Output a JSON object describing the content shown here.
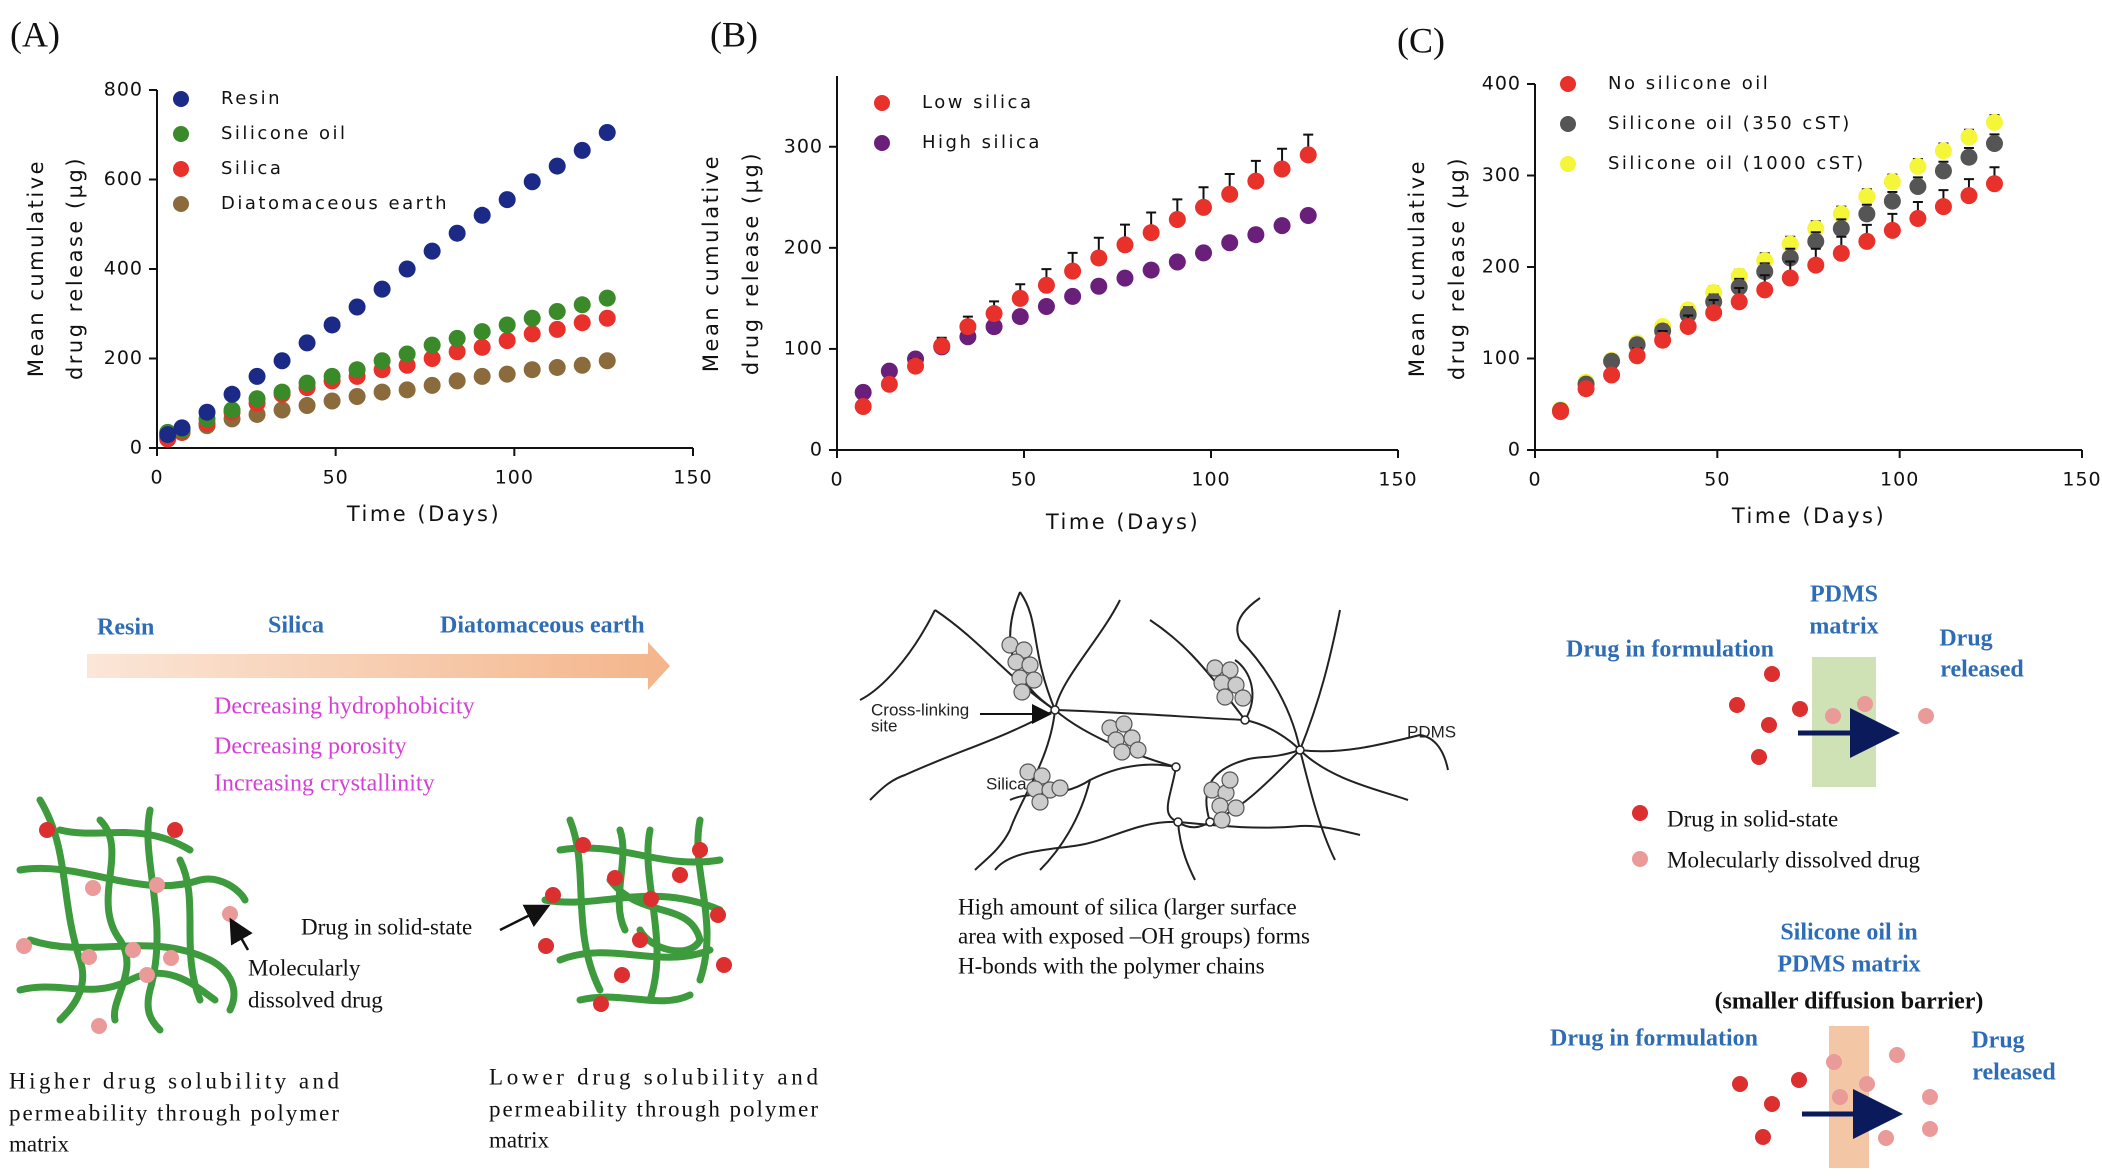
{
  "chart_data": [
    {
      "type": "scatter",
      "panel": "(A)",
      "xlabel": "Time (Days)",
      "ylabel": [
        "Mean cumulative",
        "drug release (µg)"
      ],
      "xlim": [
        0,
        150
      ],
      "xticks": [
        0,
        50,
        100,
        150
      ],
      "ylim": [
        0,
        800
      ],
      "yticks": [
        0,
        200,
        400,
        600,
        800
      ],
      "legend": "upper left",
      "x": [
        3,
        7,
        14,
        21,
        28,
        35,
        42,
        49,
        56,
        63,
        70,
        77,
        84,
        91,
        98,
        105,
        112,
        119,
        126
      ],
      "series": [
        {
          "name": "Resin",
          "color": "#1b2a86",
          "values": [
            30,
            45,
            80,
            120,
            160,
            195,
            235,
            275,
            315,
            355,
            400,
            440,
            480,
            520,
            555,
            595,
            630,
            665,
            705
          ]
        },
        {
          "name": "Silicone oil",
          "color": "#3a8a2a",
          "values": [
            35,
            40,
            65,
            85,
            110,
            125,
            145,
            160,
            175,
            195,
            210,
            230,
            245,
            260,
            275,
            290,
            305,
            320,
            335
          ]
        },
        {
          "name": "Silica",
          "color": "#e8312a",
          "values": [
            20,
            35,
            55,
            80,
            100,
            120,
            135,
            150,
            160,
            175,
            185,
            200,
            215,
            225,
            240,
            255,
            265,
            280,
            290
          ]
        },
        {
          "name": "Diatomaceous earth",
          "color": "#8b6a3c",
          "values": [
            25,
            35,
            50,
            65,
            75,
            85,
            95,
            105,
            115,
            125,
            130,
            140,
            150,
            160,
            165,
            175,
            180,
            185,
            195
          ]
        }
      ]
    },
    {
      "type": "scatter",
      "panel": "(B)",
      "xlabel": "Time (Days)",
      "ylabel": [
        "Mean cumulative",
        "drug release (µg)"
      ],
      "xlim": [
        0,
        150
      ],
      "xticks": [
        0,
        50,
        100,
        150
      ],
      "ylim": [
        0,
        370
      ],
      "yticks": [
        0,
        100,
        200,
        300
      ],
      "legend": "upper left",
      "x": [
        7,
        14,
        21,
        28,
        35,
        42,
        49,
        56,
        63,
        70,
        77,
        84,
        91,
        98,
        105,
        112,
        119,
        126
      ],
      "series": [
        {
          "name": "Low silica",
          "color": "#e8312a",
          "values": [
            43,
            65,
            83,
            103,
            122,
            135,
            150,
            163,
            177,
            190,
            203,
            215,
            228,
            240,
            253,
            266,
            278,
            292
          ],
          "errors": [
            5,
            6,
            7,
            8,
            10,
            12,
            14,
            16,
            18,
            20,
            20,
            20,
            20,
            20,
            20,
            20,
            20,
            20
          ]
        },
        {
          "name": "High silica",
          "color": "#6a1f7a",
          "values": [
            57,
            78,
            90,
            102,
            112,
            122,
            132,
            142,
            152,
            162,
            170,
            178,
            186,
            195,
            205,
            213,
            222,
            232
          ]
        }
      ]
    },
    {
      "type": "scatter",
      "panel": "(C)",
      "xlabel": "Time (Days)",
      "ylabel": [
        "Mean cumulative",
        "drug release (µg)"
      ],
      "xlim": [
        0,
        150
      ],
      "xticks": [
        0,
        50,
        100,
        150
      ],
      "ylim": [
        0,
        400
      ],
      "yticks": [
        0,
        100,
        200,
        300,
        400
      ],
      "legend": "upper left",
      "x": [
        7,
        14,
        21,
        28,
        35,
        42,
        49,
        56,
        63,
        70,
        77,
        84,
        91,
        98,
        105,
        112,
        119,
        126
      ],
      "series": [
        {
          "name": "No silicone oil",
          "color": "#e8312a",
          "values": [
            42,
            67,
            82,
            103,
            120,
            135,
            150,
            162,
            175,
            188,
            202,
            215,
            228,
            240,
            253,
            266,
            278,
            291
          ],
          "errors": [
            4,
            6,
            7,
            8,
            10,
            12,
            14,
            15,
            16,
            18,
            18,
            18,
            18,
            18,
            18,
            18,
            18,
            18
          ]
        },
        {
          "name": "Silicone oil (350 cST)",
          "color": "#555555",
          "values": [
            43,
            72,
            97,
            115,
            130,
            148,
            162,
            178,
            195,
            210,
            228,
            242,
            258,
            272,
            288,
            305,
            320,
            335
          ],
          "errors": [
            3,
            4,
            5,
            6,
            7,
            8,
            8,
            9,
            9,
            10,
            10,
            10,
            10,
            10,
            10,
            10,
            10,
            10
          ]
        },
        {
          "name": "Silicone oil (1000 cST)",
          "color": "#f5f53a",
          "values": [
            44,
            74,
            98,
            117,
            135,
            153,
            172,
            190,
            207,
            225,
            242,
            258,
            277,
            293,
            310,
            327,
            342,
            358
          ],
          "errors": [
            3,
            4,
            5,
            5,
            6,
            6,
            7,
            7,
            8,
            8,
            8,
            8,
            8,
            8,
            8,
            8,
            8,
            8
          ]
        }
      ]
    }
  ],
  "left_diagram": {
    "arrow_labels": [
      "Resin",
      "Silica",
      "Diatomaceous earth"
    ],
    "trends": [
      "Decreasing hydrophobicity",
      "Decreasing porosity",
      "Increasing crystallinity"
    ],
    "solid_label": "Drug in solid-state",
    "dissolved_label": [
      "Molecularly",
      "dissolved drug"
    ],
    "captions": [
      [
        "Higher drug solubility and",
        "permeability through polymer",
        "matrix"
      ],
      [
        "Lower drug solubility and",
        "permeability through polymer",
        "matrix"
      ]
    ]
  },
  "network_diagram": {
    "crosslink_label": [
      "Cross-linking",
      "site"
    ],
    "silica_label": "Silica",
    "pdms_label": "PDMS",
    "caption": [
      "High amount of silica (larger surface",
      "area with exposed –OH groups) forms",
      "H-bonds with the polymer chains"
    ]
  },
  "right_diagram": {
    "matrix_label": [
      "PDMS",
      "matrix"
    ],
    "formulation_label": "Drug in formulation",
    "released_label": [
      "Drug",
      "released"
    ],
    "legend": [
      "Drug in solid-state",
      "Molecularly dissolved drug"
    ],
    "oil_label": [
      "Silicone oil in",
      "PDMS matrix"
    ],
    "barrier_label": "(smaller diffusion barrier)",
    "formulation_label_2": "Drug in formulation",
    "released_label_2": [
      "Drug",
      "released"
    ]
  }
}
